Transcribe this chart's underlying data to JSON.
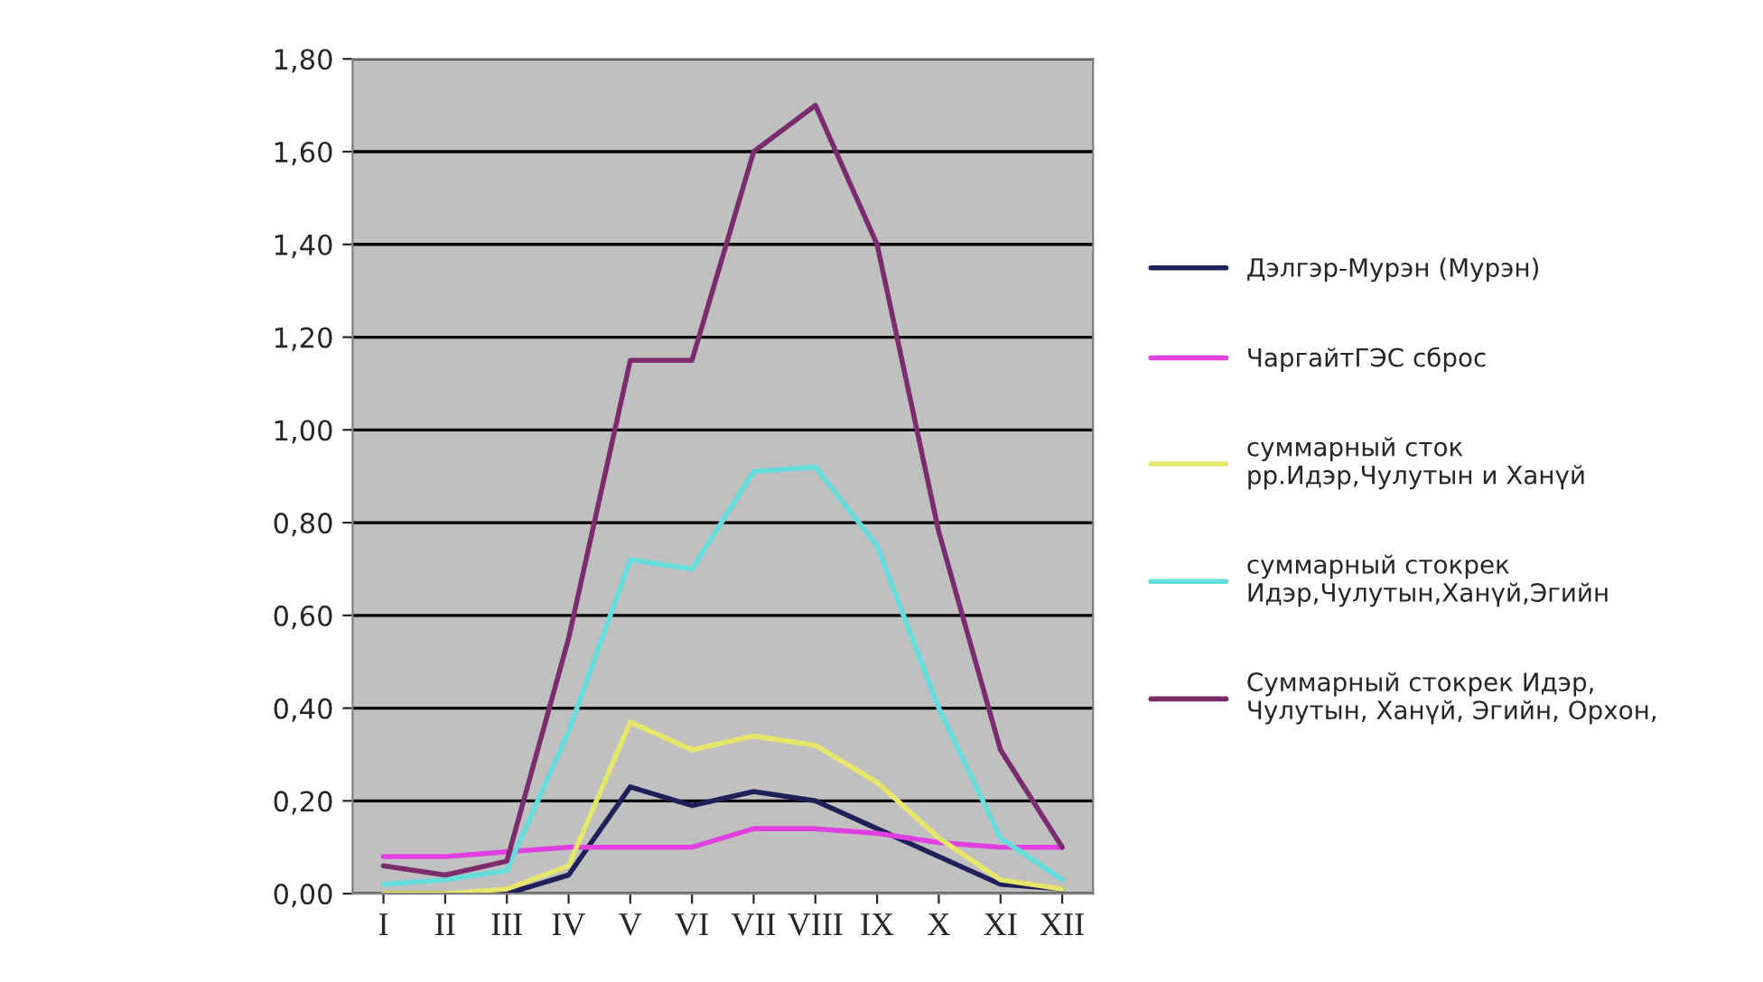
{
  "chart_data": {
    "type": "line",
    "categories": [
      "I",
      "II",
      "III",
      "IV",
      "V",
      "VI",
      "VII",
      "VIII",
      "IX",
      "X",
      "XI",
      "XII"
    ],
    "series": [
      {
        "name": "Дэлгэр-Мурэн (Мурэн)",
        "color": "#1f1f5a",
        "values": [
          0.0,
          0.0,
          0.0,
          0.04,
          0.23,
          0.19,
          0.22,
          0.2,
          0.14,
          0.08,
          0.02,
          0.01
        ]
      },
      {
        "name": "ЧаргайтГЭС сброс",
        "color": "#e040e0",
        "values": [
          0.08,
          0.08,
          0.09,
          0.1,
          0.1,
          0.1,
          0.14,
          0.14,
          0.13,
          0.11,
          0.1,
          0.1
        ]
      },
      {
        "name": "суммарный сток\nрр.Идэр,Чулутын и Ханүй",
        "color": "#e6e66a",
        "values": [
          0.0,
          0.0,
          0.01,
          0.06,
          0.37,
          0.31,
          0.34,
          0.32,
          0.24,
          0.12,
          0.03,
          0.01
        ]
      },
      {
        "name": "суммарный стокрек\nИдэр,Чулутын,Ханүй,Эгийн",
        "color": "#66dddd",
        "values": [
          0.02,
          0.03,
          0.05,
          0.35,
          0.72,
          0.7,
          0.91,
          0.92,
          0.75,
          0.4,
          0.12,
          0.03
        ]
      },
      {
        "name": "Суммарный стокрек Идэр,\nЧулутын, Ханүй, Эгийн, Орхон,",
        "color": "#7b2c6e",
        "values": [
          0.06,
          0.04,
          0.07,
          0.55,
          1.15,
          1.15,
          1.6,
          1.7,
          1.4,
          0.78,
          0.31,
          0.1
        ]
      }
    ],
    "ylim": [
      0,
      1.8
    ],
    "yticks": [
      {
        "value": 0,
        "label": "0,00"
      },
      {
        "value": 0.2,
        "label": "0,20"
      },
      {
        "value": 0.4,
        "label": "0,40"
      },
      {
        "value": 0.6,
        "label": "0,60"
      },
      {
        "value": 0.8,
        "label": "0,80"
      },
      {
        "value": 1.0,
        "label": "1,00"
      },
      {
        "value": 1.2,
        "label": "1,20"
      },
      {
        "value": 1.4,
        "label": "1,40"
      },
      {
        "value": 1.6,
        "label": "1,60"
      },
      {
        "value": 1.8,
        "label": "1,80"
      }
    ],
    "grid": "y",
    "legend": "right",
    "marker": "none",
    "line_style": "solid"
  }
}
